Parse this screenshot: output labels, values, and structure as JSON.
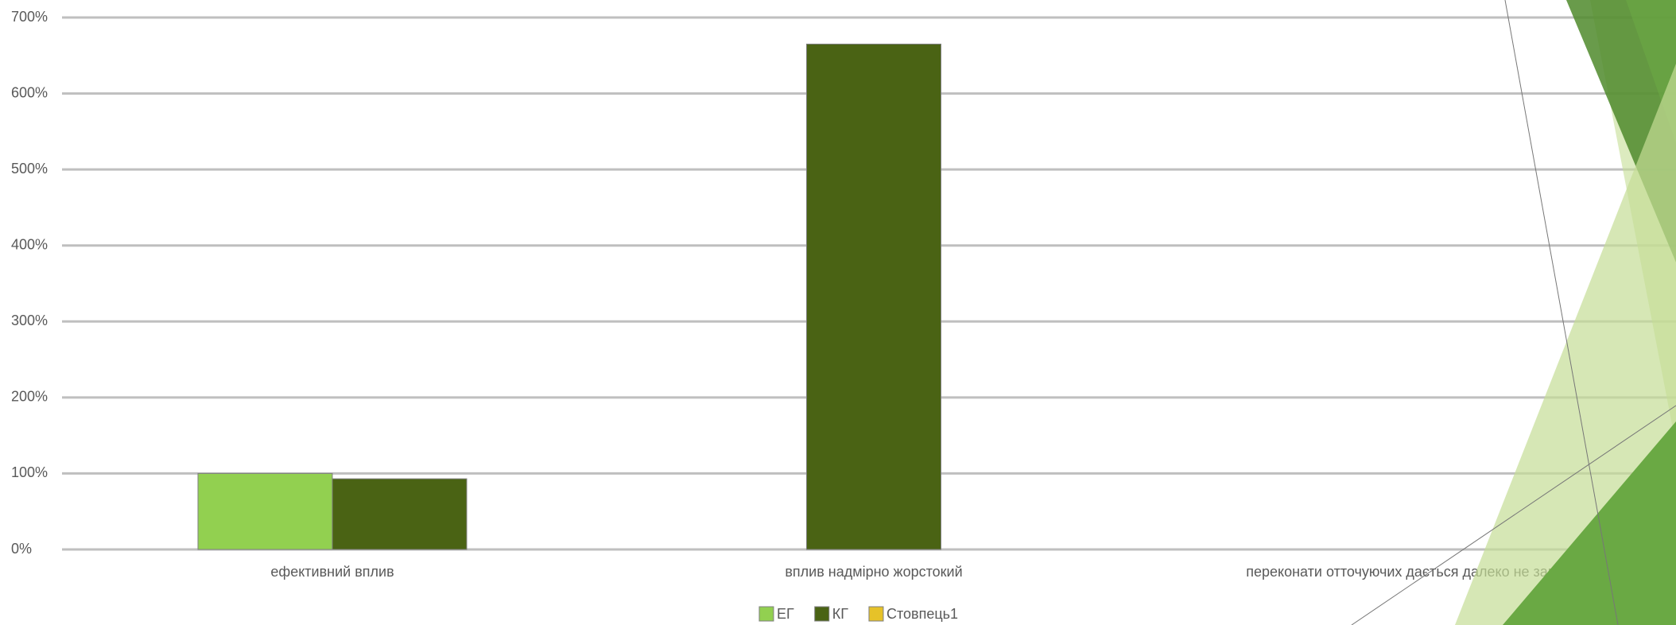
{
  "chart_data": {
    "type": "bar",
    "categories": [
      "ефективний вплив",
      "вплив надмірно жорстокий",
      "переконати отточуючих дається далеко не завжди"
    ],
    "series": [
      {
        "name": "ЕГ",
        "color": "#92d050",
        "values": [
          100,
          null,
          null
        ]
      },
      {
        "name": "КГ",
        "color": "#4a6314",
        "values": [
          93,
          665,
          null
        ]
      },
      {
        "name": "Стовпець1",
        "color": "#e6c229",
        "values": [
          null,
          null,
          null
        ]
      }
    ],
    "ylim": [
      0,
      700
    ],
    "yticks": [
      {
        "value": 0,
        "label": "0%"
      },
      {
        "value": 100,
        "label": "100%"
      },
      {
        "value": 200,
        "label": "200%"
      },
      {
        "value": 300,
        "label": "300%"
      },
      {
        "value": 400,
        "label": "400%"
      },
      {
        "value": 500,
        "label": "500%"
      },
      {
        "value": 600,
        "label": "600%"
      },
      {
        "value": 700,
        "label": "700%"
      }
    ],
    "grid": true,
    "legend": "bottom"
  }
}
